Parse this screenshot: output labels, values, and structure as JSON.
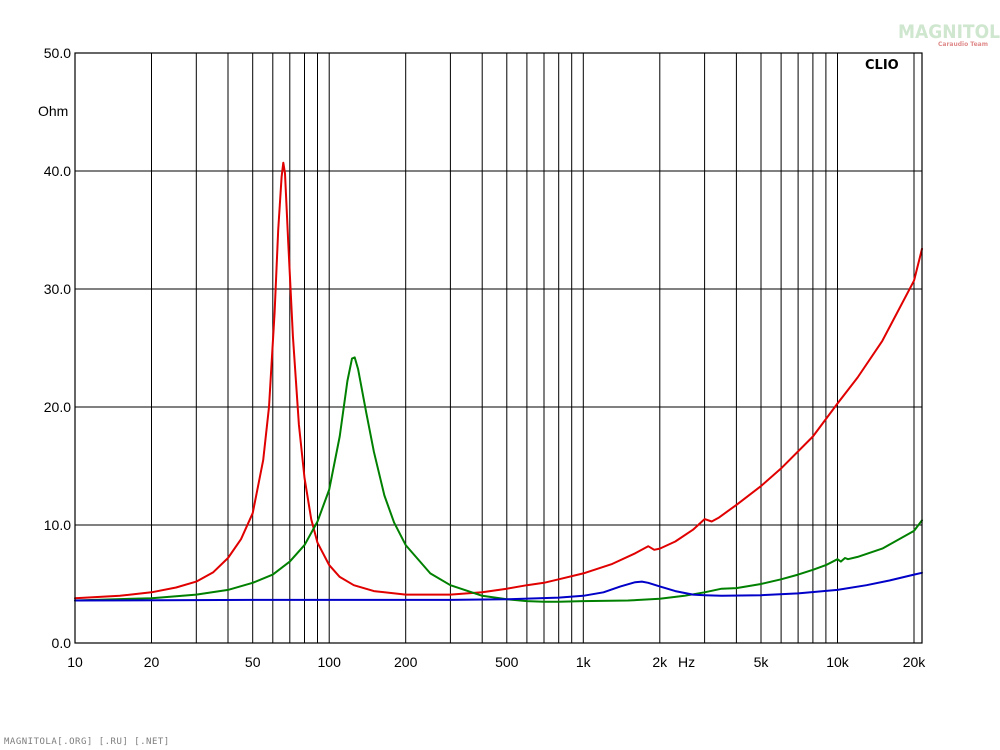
{
  "chart_data": {
    "type": "line",
    "brand_label": "CLIO",
    "y_unit": "Ohm",
    "x_unit": "Hz",
    "xscale": "log",
    "xlim": [
      10,
      21500
    ],
    "ylim": [
      0,
      50
    ],
    "grid": true,
    "x_gridlines": [
      10,
      20,
      30,
      40,
      50,
      60,
      70,
      80,
      90,
      100,
      200,
      300,
      400,
      500,
      600,
      700,
      800,
      900,
      1000,
      2000,
      3000,
      4000,
      5000,
      6000,
      7000,
      8000,
      9000,
      10000,
      20000
    ],
    "x_tick_labels": [
      {
        "value": 10,
        "label": "10"
      },
      {
        "value": 20,
        "label": "20"
      },
      {
        "value": 50,
        "label": "50"
      },
      {
        "value": 100,
        "label": "100"
      },
      {
        "value": 200,
        "label": "200"
      },
      {
        "value": 500,
        "label": "500"
      },
      {
        "value": 1000,
        "label": "1k"
      },
      {
        "value": 2000,
        "label": "2k"
      },
      {
        "value": 5000,
        "label": "5k"
      },
      {
        "value": 10000,
        "label": "10k"
      },
      {
        "value": 20000,
        "label": "20k"
      }
    ],
    "y_ticks": [
      {
        "value": 0,
        "label": "0.0"
      },
      {
        "value": 10,
        "label": "10.0"
      },
      {
        "value": 20,
        "label": "20.0"
      },
      {
        "value": 30,
        "label": "30.0"
      },
      {
        "value": 40,
        "label": "40.0"
      },
      {
        "value": 50,
        "label": "50.0"
      }
    ],
    "series": [
      {
        "color": "#e00000",
        "points": [
          [
            10,
            3.8
          ],
          [
            15,
            4.0
          ],
          [
            20,
            4.3
          ],
          [
            25,
            4.7
          ],
          [
            30,
            5.2
          ],
          [
            35,
            6.0
          ],
          [
            40,
            7.2
          ],
          [
            45,
            8.8
          ],
          [
            50,
            11.0
          ],
          [
            55,
            15.5
          ],
          [
            58,
            20.0
          ],
          [
            61,
            28.0
          ],
          [
            63,
            35.0
          ],
          [
            65,
            39.5
          ],
          [
            66,
            40.7
          ],
          [
            67,
            39.8
          ],
          [
            69,
            34.0
          ],
          [
            72,
            26.0
          ],
          [
            76,
            18.5
          ],
          [
            80,
            14.0
          ],
          [
            85,
            10.5
          ],
          [
            90,
            8.5
          ],
          [
            100,
            6.6
          ],
          [
            110,
            5.6
          ],
          [
            125,
            4.9
          ],
          [
            150,
            4.4
          ],
          [
            200,
            4.1
          ],
          [
            300,
            4.1
          ],
          [
            400,
            4.3
          ],
          [
            500,
            4.6
          ],
          [
            600,
            4.9
          ],
          [
            700,
            5.1
          ],
          [
            800,
            5.4
          ],
          [
            1000,
            5.9
          ],
          [
            1300,
            6.7
          ],
          [
            1600,
            7.6
          ],
          [
            1800,
            8.2
          ],
          [
            1900,
            7.9
          ],
          [
            2000,
            8.0
          ],
          [
            2300,
            8.6
          ],
          [
            2700,
            9.6
          ],
          [
            3000,
            10.5
          ],
          [
            3200,
            10.3
          ],
          [
            3400,
            10.6
          ],
          [
            4000,
            11.7
          ],
          [
            5000,
            13.3
          ],
          [
            6000,
            14.8
          ],
          [
            8000,
            17.5
          ],
          [
            10000,
            20.3
          ],
          [
            12000,
            22.5
          ],
          [
            15000,
            25.6
          ],
          [
            20000,
            30.7
          ],
          [
            21500,
            33.4
          ]
        ]
      },
      {
        "color": "#008000",
        "points": [
          [
            10,
            3.6
          ],
          [
            20,
            3.8
          ],
          [
            30,
            4.1
          ],
          [
            40,
            4.5
          ],
          [
            50,
            5.1
          ],
          [
            60,
            5.8
          ],
          [
            70,
            6.9
          ],
          [
            80,
            8.3
          ],
          [
            90,
            10.3
          ],
          [
            100,
            13.0
          ],
          [
            110,
            17.5
          ],
          [
            118,
            22.2
          ],
          [
            123,
            24.1
          ],
          [
            126,
            24.2
          ],
          [
            130,
            23.2
          ],
          [
            140,
            19.5
          ],
          [
            150,
            16.2
          ],
          [
            165,
            12.5
          ],
          [
            180,
            10.2
          ],
          [
            200,
            8.3
          ],
          [
            250,
            5.9
          ],
          [
            300,
            4.9
          ],
          [
            400,
            4.0
          ],
          [
            500,
            3.7
          ],
          [
            600,
            3.55
          ],
          [
            700,
            3.5
          ],
          [
            800,
            3.5
          ],
          [
            1000,
            3.55
          ],
          [
            1500,
            3.6
          ],
          [
            2000,
            3.75
          ],
          [
            2500,
            4.0
          ],
          [
            3000,
            4.3
          ],
          [
            3500,
            4.6
          ],
          [
            4000,
            4.65
          ],
          [
            5000,
            5.0
          ],
          [
            6000,
            5.4
          ],
          [
            7000,
            5.8
          ],
          [
            8000,
            6.2
          ],
          [
            9000,
            6.6
          ],
          [
            10000,
            7.1
          ],
          [
            10300,
            6.9
          ],
          [
            10700,
            7.2
          ],
          [
            11000,
            7.1
          ],
          [
            12000,
            7.3
          ],
          [
            15000,
            8.0
          ],
          [
            20000,
            9.5
          ],
          [
            21500,
            10.4
          ]
        ]
      },
      {
        "color": "#0000c8",
        "points": [
          [
            10,
            3.6
          ],
          [
            50,
            3.65
          ],
          [
            100,
            3.65
          ],
          [
            300,
            3.65
          ],
          [
            500,
            3.7
          ],
          [
            800,
            3.85
          ],
          [
            1000,
            4.0
          ],
          [
            1200,
            4.3
          ],
          [
            1400,
            4.8
          ],
          [
            1600,
            5.15
          ],
          [
            1700,
            5.2
          ],
          [
            1800,
            5.1
          ],
          [
            2000,
            4.8
          ],
          [
            2300,
            4.4
          ],
          [
            2700,
            4.1
          ],
          [
            3000,
            4.05
          ],
          [
            3500,
            4.0
          ],
          [
            5000,
            4.05
          ],
          [
            7000,
            4.2
          ],
          [
            10000,
            4.5
          ],
          [
            13000,
            4.9
          ],
          [
            16000,
            5.3
          ],
          [
            20000,
            5.8
          ],
          [
            21500,
            5.95
          ]
        ]
      }
    ]
  },
  "watermark": {
    "main": "MAGNITOLA",
    "sub": "Caraudio Team"
  },
  "footer_text": "MAGNITOLA[.ORG] [.RU] [.NET]"
}
